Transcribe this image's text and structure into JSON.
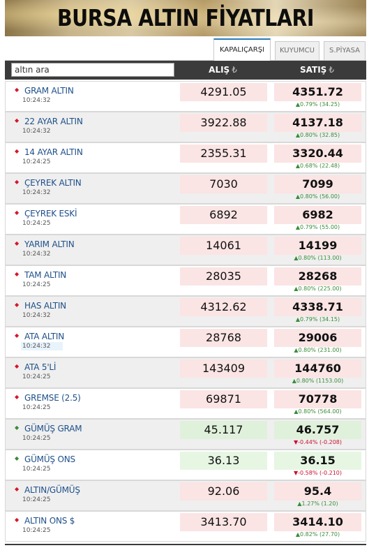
{
  "banner": {
    "title": "BURSA ALTIN FİYATLARI"
  },
  "tabs": [
    {
      "label": "KAPALIÇARŞI",
      "active": true
    },
    {
      "label": "KUYUMCU",
      "active": false
    },
    {
      "label": "S.PİYASA",
      "active": false
    }
  ],
  "table": {
    "search_value": "altın ara",
    "buy_header": "ALIŞ",
    "sell_header": "SATIŞ",
    "currency_symbol": "₺",
    "rows": [
      {
        "name": "GRAM ALTIN",
        "time": "10:24:32",
        "buy": "4291.05",
        "sell": "4351.72",
        "dir": "up",
        "change": "▲0.79% (34.25)"
      },
      {
        "name": "22 AYAR ALTIN",
        "time": "10:24:32",
        "buy": "3922.88",
        "sell": "4137.18",
        "dir": "up",
        "change": "▲0.80% (32.85)"
      },
      {
        "name": "14 AYAR ALTIN",
        "time": "10:24:25",
        "buy": "2355.31",
        "sell": "3320.44",
        "dir": "up",
        "change": "▲0.68% (22.48)"
      },
      {
        "name": "ÇEYREK ALTIN",
        "time": "10:24:32",
        "buy": "7030",
        "sell": "7099",
        "dir": "up",
        "change": "▲0.80% (56.00)"
      },
      {
        "name": "ÇEYREK ESKİ",
        "time": "10:24:25",
        "buy": "6892",
        "sell": "6982",
        "dir": "up",
        "change": "▲0.79% (55.00)"
      },
      {
        "name": "YARIM ALTIN",
        "time": "10:24:32",
        "buy": "14061",
        "sell": "14199",
        "dir": "up",
        "change": "▲0.80% (113.00)"
      },
      {
        "name": "TAM ALTIN",
        "time": "10:24:25",
        "buy": "28035",
        "sell": "28268",
        "dir": "up",
        "change": "▲0.80% (225.00)"
      },
      {
        "name": "HAS ALTIN",
        "time": "10:24:32",
        "buy": "4312.62",
        "sell": "4338.71",
        "dir": "up",
        "change": "▲0.79% (34.15)"
      },
      {
        "name": "ATA ALTIN",
        "time": "10:24:32",
        "buy": "28768",
        "sell": "29006",
        "dir": "up",
        "change": "▲0.80% (231.00)"
      },
      {
        "name": "ATA 5'Lİ",
        "time": "10:24:25",
        "buy": "143409",
        "sell": "144760",
        "dir": "up",
        "change": "▲0.80% (1153.00)"
      },
      {
        "name": "GREMSE (2.5)",
        "time": "10:24:25",
        "buy": "69871",
        "sell": "70778",
        "dir": "up",
        "change": "▲0.80% (564.00)"
      },
      {
        "name": "GÜMÜŞ GRAM",
        "time": "10:24:25",
        "buy": "45.117",
        "sell": "46.757",
        "dir": "down",
        "change": "▼-0.44% (-0.208)"
      },
      {
        "name": "GÜMÜŞ ONS",
        "time": "10:24:25",
        "buy": "36.13",
        "sell": "36.15",
        "dir": "down",
        "change": "▼-0.58% (-0.210)"
      },
      {
        "name": "ALTIN/GÜMÜŞ",
        "time": "10:24:25",
        "buy": "92.06",
        "sell": "95.4",
        "dir": "up",
        "change": "▲1.27% (1.20)"
      },
      {
        "name": "ALTIN ONS $",
        "time": "10:24:25",
        "buy": "3413.70",
        "sell": "3414.10",
        "dir": "up",
        "change": "▲0.82% (27.70)"
      }
    ]
  },
  "colors": {
    "up": "#3a8c3a",
    "down": "#c8102e",
    "header_bg": "#3b3b3b",
    "active_tab": "#2a7ab8",
    "name": "#1e4f8a"
  },
  "icons": {
    "up_row_marker": "red-diamond-icon",
    "down_row_marker": "green-diamond-icon"
  }
}
